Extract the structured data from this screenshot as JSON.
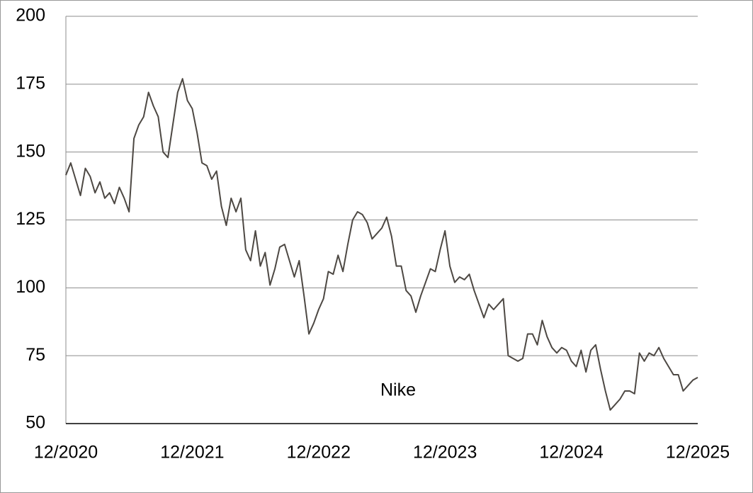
{
  "chart_data": {
    "type": "line",
    "annotation": "Nike",
    "categories": [
      "12/2020",
      null,
      null,
      null,
      null,
      null,
      null,
      null,
      null,
      null,
      null,
      null,
      null,
      null,
      null,
      null,
      null,
      null,
      null,
      null,
      null,
      null,
      null,
      null,
      null,
      null,
      "12/2021",
      null,
      null,
      null,
      null,
      null,
      null,
      null,
      null,
      null,
      null,
      null,
      null,
      null,
      null,
      null,
      null,
      null,
      null,
      null,
      null,
      null,
      null,
      null,
      null,
      null,
      "12/2022",
      null,
      null,
      null,
      null,
      null,
      null,
      null,
      null,
      null,
      null,
      null,
      null,
      null,
      null,
      null,
      null,
      null,
      null,
      null,
      null,
      null,
      null,
      null,
      null,
      null,
      "12/2023",
      null,
      null,
      null,
      null,
      null,
      null,
      null,
      null,
      null,
      null,
      null,
      null,
      null,
      null,
      null,
      null,
      null,
      null,
      null,
      null,
      null,
      null,
      null,
      null,
      null,
      "12/2024",
      null,
      null,
      null,
      null,
      null,
      null,
      null,
      null,
      null,
      null,
      null,
      null,
      null,
      null,
      null,
      null,
      null,
      null,
      null,
      null,
      null,
      null,
      null,
      null,
      null,
      "12/2025"
    ],
    "values": [
      141.5,
      146,
      140,
      134,
      144,
      141,
      135,
      139,
      133,
      135,
      131,
      137,
      133,
      128,
      155,
      160,
      163,
      172,
      167,
      163,
      150,
      148,
      160,
      172,
      177,
      169,
      166,
      157,
      146,
      145,
      140,
      143,
      130,
      123,
      133,
      128,
      133,
      114,
      110,
      121,
      108,
      113,
      101,
      107,
      115,
      116,
      110,
      104,
      110,
      97,
      83,
      87,
      92,
      96,
      106,
      105,
      112,
      106,
      116,
      125,
      128,
      127,
      124,
      118,
      120,
      122,
      126,
      119,
      108,
      108,
      99,
      97,
      91,
      97,
      102,
      107,
      106,
      114,
      121,
      108,
      102,
      104,
      103,
      105,
      99,
      94,
      89,
      94,
      92,
      94,
      96,
      75,
      74,
      73,
      74,
      83,
      83,
      79,
      88,
      82,
      78,
      76,
      78,
      77,
      73,
      71,
      77,
      69,
      77,
      79,
      70,
      62,
      55,
      57,
      59,
      62,
      62,
      61,
      76,
      73,
      76,
      75,
      78,
      74,
      71,
      68,
      68,
      62,
      64,
      66,
      67
    ],
    "color": "#4d4843",
    "ylim": [
      50,
      200
    ],
    "yticks": [
      50,
      75,
      100,
      125,
      150,
      175,
      200
    ],
    "grid": true
  }
}
